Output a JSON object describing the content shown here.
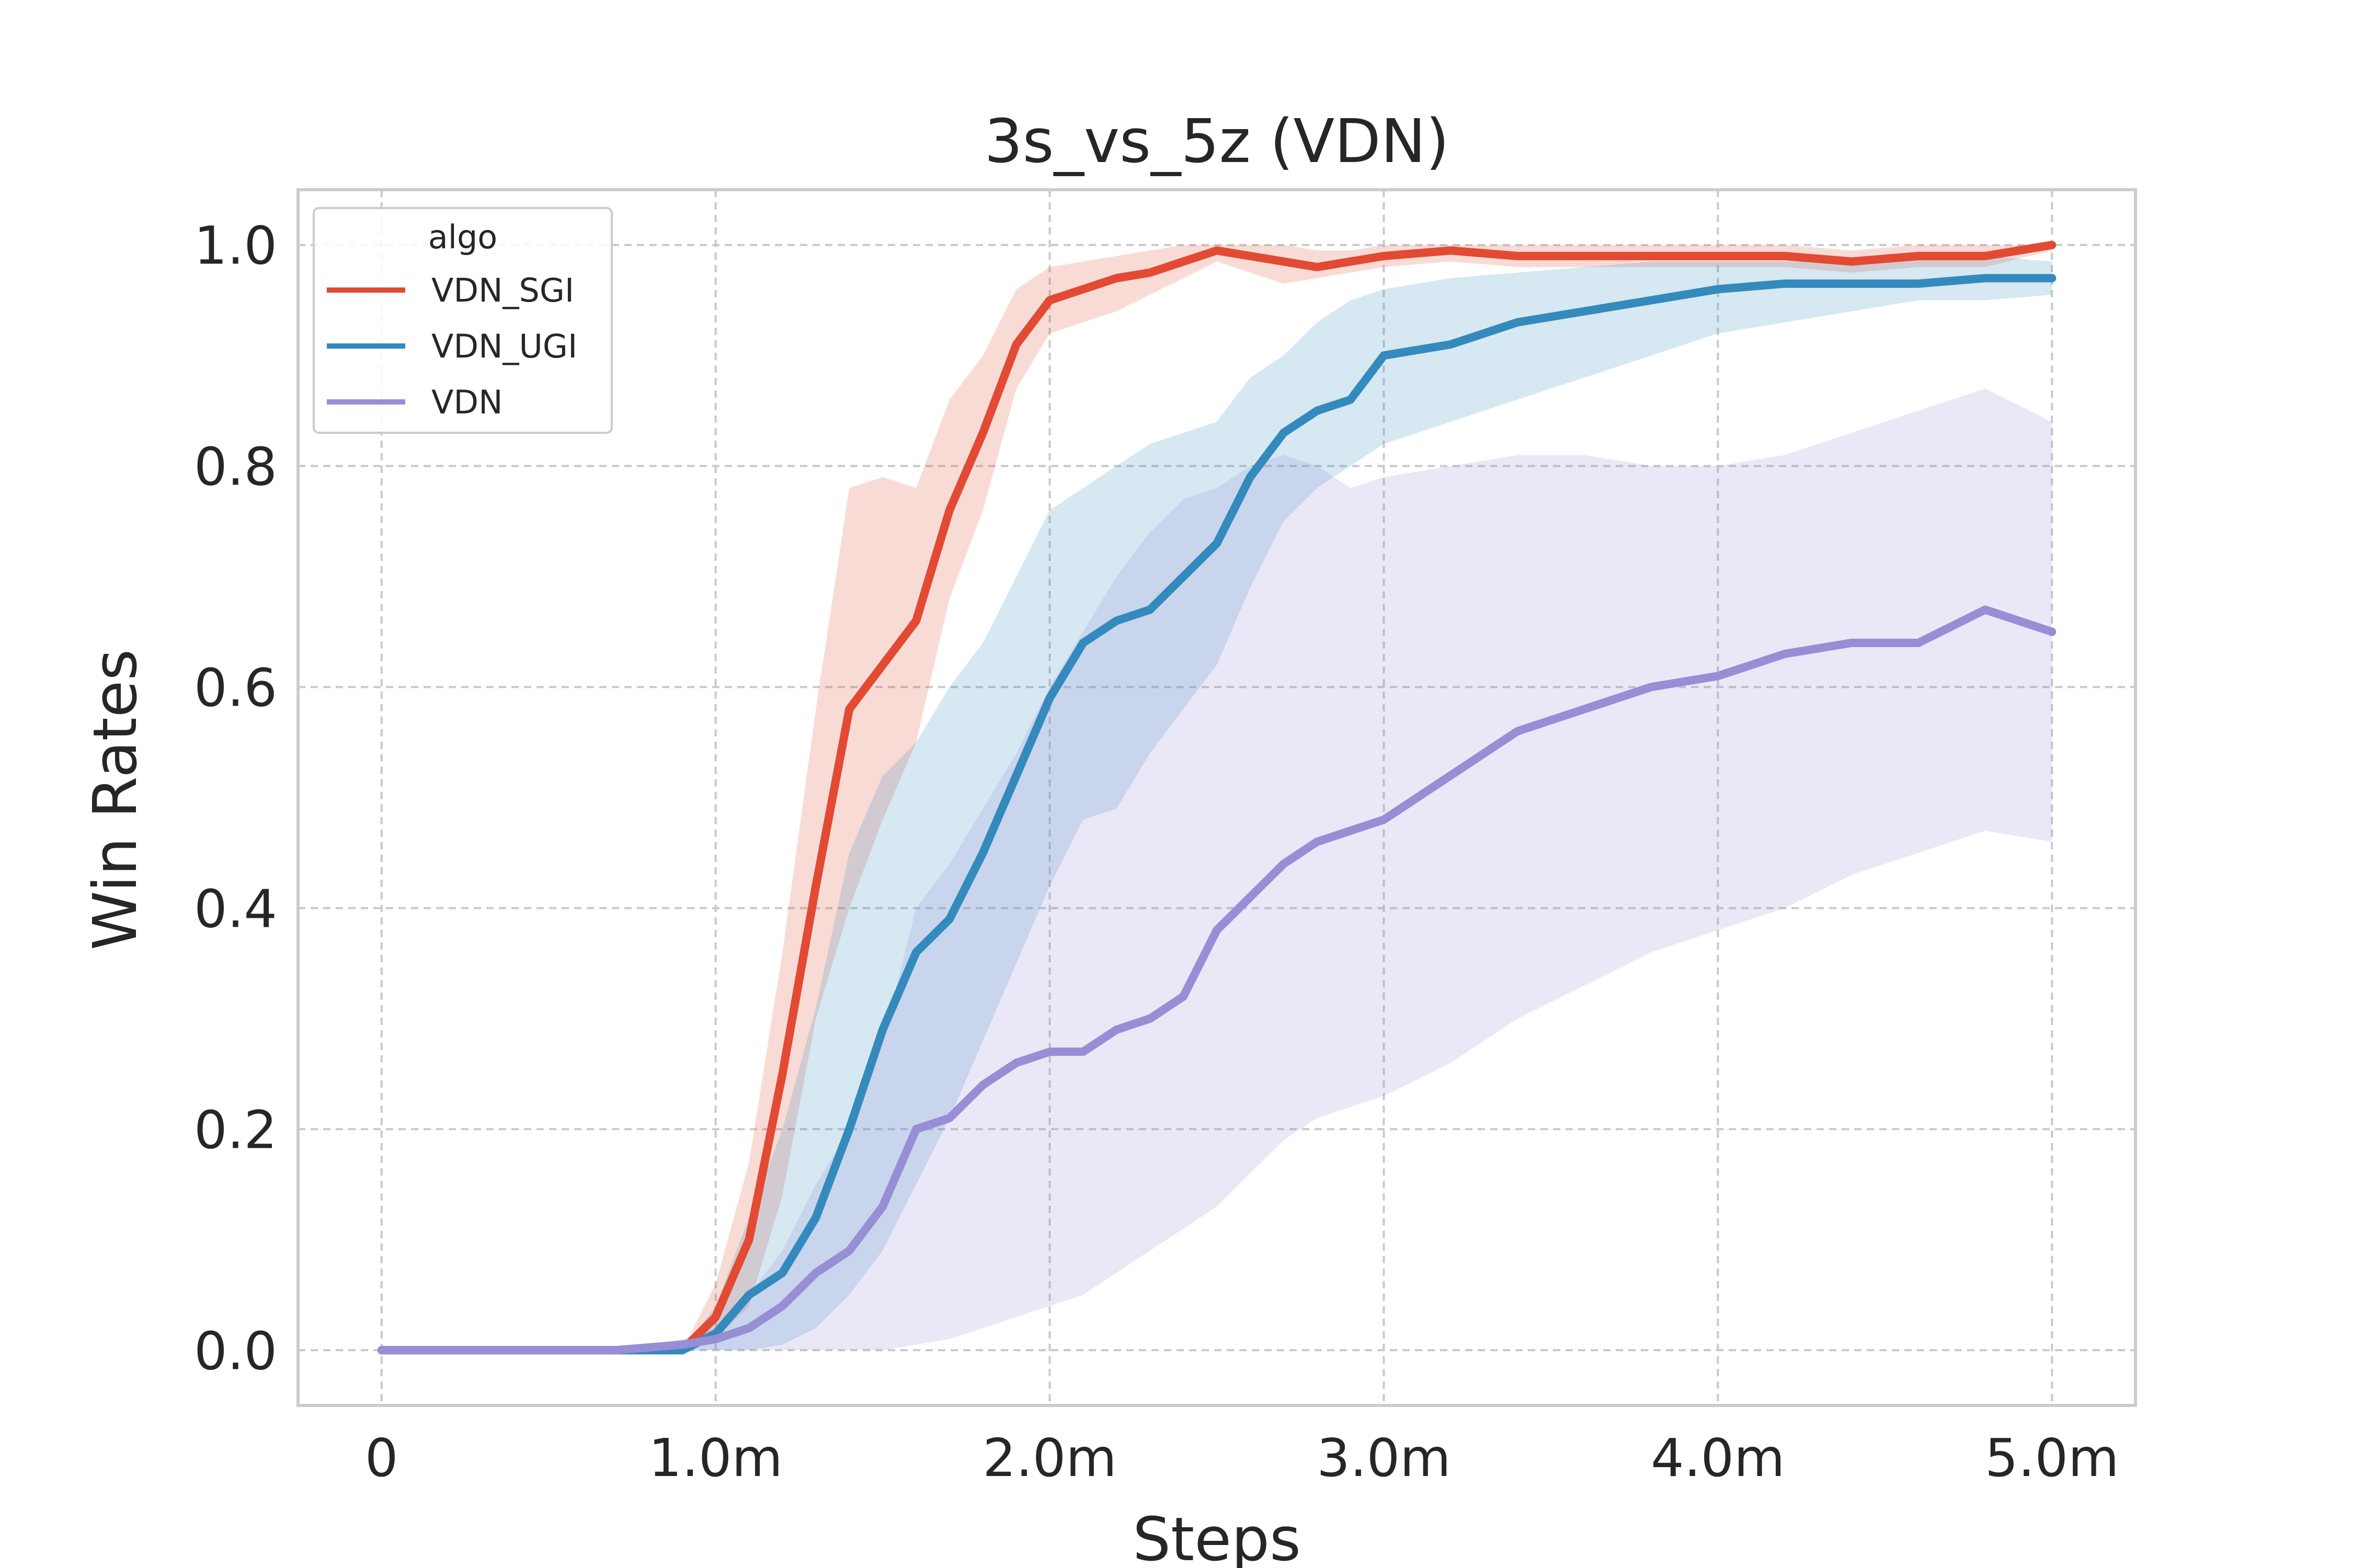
{
  "chart_data": {
    "type": "line",
    "title": "3s_vs_5z (VDN)",
    "xlabel": "Steps",
    "ylabel": "Win Rates",
    "xlim": [
      -0.25,
      5.25
    ],
    "ylim": [
      -0.05,
      1.05
    ],
    "x_ticks": [
      0,
      1,
      2,
      3,
      4,
      5
    ],
    "x_tick_labels": [
      "0",
      "1.0m",
      "2.0m",
      "3.0m",
      "4.0m",
      "5.0m"
    ],
    "y_ticks": [
      0.0,
      0.2,
      0.4,
      0.6,
      0.8,
      1.0
    ],
    "y_tick_labels": [
      "0.0",
      "0.2",
      "0.4",
      "0.6",
      "0.8",
      "1.0"
    ],
    "grid": true,
    "legend": {
      "title": "algo",
      "position": "top-left"
    },
    "x": [
      0.0,
      0.7,
      0.9,
      1.0,
      1.1,
      1.2,
      1.3,
      1.4,
      1.5,
      1.6,
      1.7,
      1.8,
      1.9,
      2.0,
      2.1,
      2.2,
      2.3,
      2.4,
      2.5,
      2.6,
      2.7,
      2.8,
      2.9,
      3.0,
      3.2,
      3.4,
      3.6,
      3.8,
      4.0,
      4.2,
      4.4,
      4.6,
      4.8,
      5.0
    ],
    "series": [
      {
        "name": "VDN_SGI",
        "color": "#e24a33",
        "values": [
          0.0,
          0.0,
          0.0,
          0.03,
          0.1,
          0.25,
          0.42,
          0.58,
          0.62,
          0.66,
          0.76,
          0.83,
          0.91,
          0.95,
          0.96,
          0.97,
          0.975,
          0.985,
          0.995,
          0.99,
          0.985,
          0.98,
          0.985,
          0.99,
          0.995,
          0.99,
          0.99,
          0.99,
          0.99,
          0.99,
          0.985,
          0.99,
          0.99,
          1.0
        ],
        "lower": [
          0.0,
          0.0,
          0.0,
          0.01,
          0.04,
          0.14,
          0.3,
          0.4,
          0.48,
          0.55,
          0.68,
          0.76,
          0.87,
          0.92,
          0.93,
          0.94,
          0.955,
          0.97,
          0.985,
          0.975,
          0.965,
          0.97,
          0.975,
          0.98,
          0.985,
          0.98,
          0.98,
          0.98,
          0.98,
          0.98,
          0.975,
          0.98,
          0.98,
          0.995
        ],
        "upper": [
          0.0,
          0.0,
          0.0,
          0.06,
          0.17,
          0.36,
          0.58,
          0.78,
          0.79,
          0.78,
          0.86,
          0.9,
          0.96,
          0.98,
          0.985,
          0.99,
          0.995,
          1.0,
          1.0,
          1.0,
          1.0,
          0.995,
          0.995,
          1.0,
          1.0,
          1.0,
          1.0,
          1.0,
          1.0,
          1.0,
          0.995,
          1.0,
          1.0,
          1.0
        ]
      },
      {
        "name": "VDN_UGI",
        "color": "#348abd",
        "values": [
          0.0,
          0.0,
          0.0,
          0.015,
          0.05,
          0.07,
          0.12,
          0.2,
          0.29,
          0.36,
          0.39,
          0.45,
          0.52,
          0.59,
          0.64,
          0.66,
          0.67,
          0.7,
          0.73,
          0.79,
          0.83,
          0.85,
          0.86,
          0.9,
          0.91,
          0.93,
          0.94,
          0.95,
          0.96,
          0.965,
          0.965,
          0.965,
          0.97,
          0.97
        ],
        "lower": [
          0.0,
          0.0,
          0.0,
          0.0,
          0.0,
          0.005,
          0.02,
          0.05,
          0.09,
          0.15,
          0.21,
          0.28,
          0.35,
          0.42,
          0.48,
          0.49,
          0.54,
          0.58,
          0.62,
          0.69,
          0.75,
          0.78,
          0.8,
          0.82,
          0.84,
          0.86,
          0.88,
          0.9,
          0.92,
          0.93,
          0.94,
          0.95,
          0.95,
          0.955
        ],
        "upper": [
          0.0,
          0.0,
          0.0,
          0.04,
          0.12,
          0.2,
          0.31,
          0.45,
          0.52,
          0.55,
          0.6,
          0.64,
          0.7,
          0.76,
          0.78,
          0.8,
          0.82,
          0.83,
          0.84,
          0.88,
          0.9,
          0.93,
          0.95,
          0.96,
          0.97,
          0.975,
          0.98,
          0.985,
          0.985,
          0.985,
          0.985,
          0.99,
          0.99,
          0.985
        ]
      },
      {
        "name": "VDN",
        "color": "#988ed5",
        "values": [
          0.0,
          0.0,
          0.005,
          0.01,
          0.02,
          0.04,
          0.07,
          0.09,
          0.13,
          0.2,
          0.21,
          0.24,
          0.26,
          0.27,
          0.27,
          0.29,
          0.3,
          0.32,
          0.38,
          0.41,
          0.44,
          0.46,
          0.47,
          0.48,
          0.52,
          0.56,
          0.58,
          0.6,
          0.61,
          0.63,
          0.64,
          0.64,
          0.67,
          0.65
        ],
        "lower": [
          0.0,
          0.0,
          0.0,
          0.0,
          0.0,
          0.0,
          0.0,
          0.0,
          0.0,
          0.005,
          0.01,
          0.02,
          0.03,
          0.04,
          0.05,
          0.07,
          0.09,
          0.11,
          0.13,
          0.16,
          0.19,
          0.21,
          0.22,
          0.23,
          0.26,
          0.3,
          0.33,
          0.36,
          0.38,
          0.4,
          0.43,
          0.45,
          0.47,
          0.46
        ],
        "upper": [
          0.0,
          0.0,
          0.01,
          0.02,
          0.05,
          0.09,
          0.15,
          0.2,
          0.28,
          0.4,
          0.44,
          0.49,
          0.54,
          0.6,
          0.65,
          0.7,
          0.74,
          0.77,
          0.78,
          0.8,
          0.81,
          0.8,
          0.78,
          0.79,
          0.8,
          0.81,
          0.81,
          0.8,
          0.8,
          0.81,
          0.83,
          0.85,
          0.87,
          0.84
        ]
      }
    ]
  }
}
